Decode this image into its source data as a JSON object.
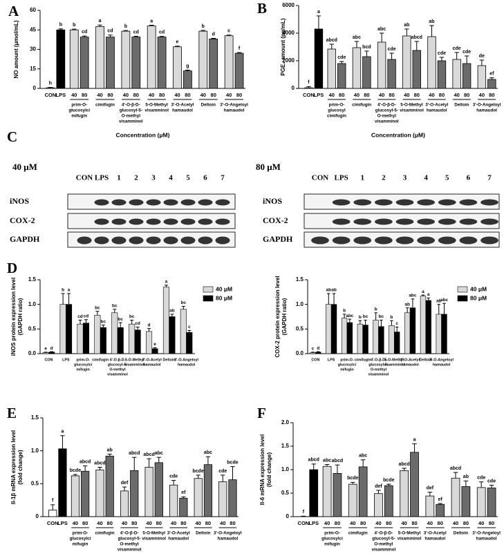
{
  "panel_labels": [
    "A",
    "B",
    "C",
    "D",
    "E",
    "F"
  ],
  "blots": [
    {
      "concentration": "40 μM",
      "lanes": [
        "CON",
        "LPS",
        "1",
        "2",
        "3",
        "4",
        "5",
        "6",
        "7"
      ],
      "rows": [
        "iNOS",
        "COX-2",
        "GAPDH"
      ]
    },
    {
      "concentration": "80 μM",
      "lanes": [
        "CON",
        "LPS",
        "1",
        "2",
        "3",
        "4",
        "5",
        "6",
        "7"
      ],
      "rows": [
        "iNOS",
        "COX-2",
        "GAPDH"
      ]
    }
  ],
  "chart_data": [
    {
      "type": "bar",
      "y_label": [
        "NO amount (μmol/mL)"
      ],
      "x_label": "Concentration (μM)",
      "categories": [
        "CON",
        "LPS",
        "40",
        "80",
        "40",
        "80",
        "40",
        "80",
        "40",
        "80",
        "40",
        "80",
        "40",
        "80",
        "40",
        "80"
      ],
      "groups": [
        [
          "prim-O-",
          "glucosylci",
          "mifugin"
        ],
        [
          "cimifugin"
        ],
        [
          "4'-O-β-D-",
          "glucosyl-5-",
          "O-methyl",
          "visamminol"
        ],
        [
          "5-O-Methyl",
          "visamminol"
        ],
        [
          "3'-O-Acetyl",
          "hamaudol"
        ],
        [
          "Deltoin"
        ],
        [
          "3'-O-Angeloyl",
          "hamaudol"
        ]
      ],
      "values": [
        0.5,
        45,
        45,
        39.5,
        47.5,
        39.5,
        44,
        39.5,
        48,
        39.5,
        32,
        13.5,
        44,
        38,
        40.5,
        27
      ],
      "errors": [
        0.3,
        0.8,
        0.6,
        0.8,
        1.2,
        1.5,
        0.5,
        0.6,
        0.6,
        0.5,
        0.5,
        0.6,
        0.6,
        0.5,
        0.5,
        0.6
      ],
      "letters": [
        "h",
        "b",
        "b",
        "cd",
        "a",
        "cd",
        "b",
        "cd",
        "a",
        "cd",
        "e",
        "g",
        "b",
        "d",
        "c",
        "f"
      ],
      "bar_colors": [
        "#ffffff",
        "#000000",
        "#d9d9d9",
        "#6b6b6b",
        "#d9d9d9",
        "#6b6b6b",
        "#d9d9d9",
        "#6b6b6b",
        "#d9d9d9",
        "#6b6b6b",
        "#d9d9d9",
        "#6b6b6b",
        "#d9d9d9",
        "#6b6b6b",
        "#d9d9d9",
        "#6b6b6b"
      ],
      "ylim": [
        0,
        60
      ],
      "yticks": [
        0,
        15,
        30,
        45,
        60
      ]
    },
    {
      "type": "bar",
      "y_label": [
        "PGE₂ amount (pg/mL)"
      ],
      "x_label": "Concentration (μM)",
      "categories": [
        "CON",
        "LPS",
        "40",
        "80",
        "40",
        "80",
        "40",
        "80",
        "40",
        "80",
        "40",
        "80",
        "40",
        "80",
        "40",
        "80"
      ],
      "groups": [
        [
          "prim-O-",
          "glucosyl",
          "cimifugin"
        ],
        [
          "cimifugin"
        ],
        [
          "4'-O-β-D-",
          "glucosyl-5-",
          "O-methyl",
          "visamminol"
        ],
        [
          "5-O-Methyl",
          "visamminol"
        ],
        [
          "3'-O-Acetyl",
          "hamaudol"
        ],
        [
          "Deltoin"
        ],
        [
          "3'-O-Angeloyl",
          "hamaudol"
        ]
      ],
      "values": [
        50,
        4300,
        2850,
        1800,
        2950,
        2300,
        3350,
        2100,
        3800,
        2750,
        3750,
        2000,
        2100,
        1800,
        1650,
        650
      ],
      "errors": [
        80,
        950,
        350,
        150,
        450,
        400,
        650,
        450,
        500,
        650,
        800,
        250,
        500,
        550,
        400,
        120
      ],
      "letters": [
        "f",
        "a",
        "abcd",
        "cde",
        "abc",
        "bcd",
        "abc",
        "cde",
        "ab",
        "abcd",
        "ab",
        "cde",
        "cde",
        "cde",
        "de",
        "ef"
      ],
      "bar_colors": [
        "#ffffff",
        "#000000",
        "#d9d9d9",
        "#6b6b6b",
        "#d9d9d9",
        "#6b6b6b",
        "#d9d9d9",
        "#6b6b6b",
        "#d9d9d9",
        "#6b6b6b",
        "#d9d9d9",
        "#6b6b6b",
        "#d9d9d9",
        "#6b6b6b",
        "#d9d9d9",
        "#6b6b6b"
      ],
      "ylim": [
        0,
        6000
      ],
      "yticks": [
        0,
        2000,
        4000,
        6000
      ]
    },
    {
      "type": "grouped_bar",
      "y_label": [
        "iNOS protein expression level",
        "(GAPDH ratio)"
      ],
      "categories": [
        [
          "CON"
        ],
        [
          "LPS"
        ],
        [
          "prim-O-",
          "glucosylci",
          "mifugin"
        ],
        [
          "cimifugin"
        ],
        [
          "4'-O-β-D-",
          "glucosyl-5-",
          "O-methyl",
          "visamminol"
        ],
        [
          "5-O-Methyl",
          "visamminol"
        ],
        [
          "3'-O-Acetyl",
          "hamaudol"
        ],
        [
          "Deltoin"
        ],
        [
          "3'-O-Angeloyl",
          "hamaudol"
        ]
      ],
      "series": [
        {
          "name": "40 μM",
          "color": "#d9d9d9",
          "values": [
            0.02,
            1.0,
            0.6,
            0.78,
            0.83,
            0.6,
            0.45,
            1.35,
            0.9
          ],
          "errors": [
            0.01,
            0.22,
            0.08,
            0.08,
            0.07,
            0.08,
            0.06,
            0.04,
            0.06
          ],
          "letters": [
            "e",
            "b",
            "cd",
            "bc",
            "bc",
            "bc",
            "d",
            "a",
            "bc"
          ]
        },
        {
          "name": "80 μM",
          "color": "#000000",
          "values": [
            0.03,
            1.0,
            0.62,
            0.53,
            0.53,
            0.48,
            0.1,
            0.75,
            0.43
          ],
          "errors": [
            0.01,
            0.22,
            0.07,
            0.05,
            0.1,
            0.06,
            0.02,
            0.05,
            0.04
          ],
          "letters": [
            "d",
            "a",
            "cd",
            "bc",
            "bc",
            "cd",
            "e",
            "ab",
            "c"
          ]
        }
      ],
      "legend": "outside-right",
      "ylim": [
        0,
        1.5
      ],
      "yticks": [
        {
          "value": 0,
          "label": "0.0"
        },
        0.5,
        {
          "value": 1,
          "label": "1.0"
        },
        1.5
      ]
    },
    {
      "type": "grouped_bar",
      "y_label": [
        "COX-2 protein expression level",
        "(GAPDH ratio)"
      ],
      "categories": [
        [
          "CON"
        ],
        [
          "LPS"
        ],
        [
          "prim-O-",
          "glucosylci",
          "mifugin"
        ],
        [
          "cimifugin"
        ],
        [
          "4'-O-β-D-",
          "glucosyl-5-",
          "O-methyl",
          "visamminol"
        ],
        [
          "5-O-Methyl",
          "visamminol"
        ],
        [
          "3'-O-Acetyl",
          "hamaudol"
        ],
        [
          "Deltoin"
        ],
        [
          "3'-O-Angeloyl",
          "hamaudol"
        ]
      ],
      "series": [
        {
          "name": "40 μM",
          "color": "#d9d9d9",
          "values": [
            0.02,
            1.0,
            0.72,
            0.6,
            0.68,
            0.57,
            0.83,
            1.17,
            0.8
          ],
          "errors": [
            0.01,
            0.22,
            0.08,
            0.07,
            0.15,
            0.1,
            0.1,
            0.02,
            0.2
          ],
          "letters": [
            "c",
            "ab",
            "b",
            "b",
            "b",
            "b",
            "ab",
            "a",
            "ab"
          ]
        },
        {
          "name": "80 μM",
          "color": "#000000",
          "values": [
            0.03,
            1.0,
            0.63,
            0.58,
            0.55,
            0.44,
            0.93,
            1.08,
            0.8
          ],
          "errors": [
            0.01,
            0.22,
            0.07,
            0.1,
            0.13,
            0.1,
            0.18,
            0.05,
            0.22
          ],
          "letters": [
            "d",
            "ab",
            "abc",
            "bc",
            "bc",
            "c",
            "abc",
            "a",
            "abc"
          ]
        }
      ],
      "legend": "outside-right",
      "ylim": [
        0,
        1.5
      ],
      "yticks": [
        {
          "value": 0,
          "label": "0.0"
        },
        0.5,
        {
          "value": 1,
          "label": "1.0"
        },
        1.5
      ]
    },
    {
      "type": "bar",
      "y_label": [
        "Il-1β mRNA expression level",
        "(fold change)"
      ],
      "categories": [
        "CON",
        "LPS",
        "40",
        "80",
        "40",
        "80",
        "40",
        "80",
        "40",
        "80",
        "40",
        "80",
        "40",
        "80",
        "40",
        "80"
      ],
      "groups": [
        [
          "prim-O-",
          "glucosylci",
          "mifugin"
        ],
        [
          "cimifugin"
        ],
        [
          "4'-O-β-D-",
          "glucosyl-5-",
          "O-methyl",
          "visamminol"
        ],
        [
          "5-O-Methyl",
          "visamminol"
        ],
        [
          "3'-O-Acetyl",
          "hamaudol"
        ],
        [
          "Deltoin"
        ],
        [
          "3'-O-Angeloyl",
          "hamaudol"
        ]
      ],
      "values": [
        0.1,
        1.03,
        0.62,
        0.69,
        0.71,
        0.92,
        0.39,
        0.7,
        0.75,
        0.82,
        0.48,
        0.28,
        0.58,
        0.79,
        0.53,
        0.56
      ],
      "errors": [
        0.08,
        0.2,
        0.02,
        0.08,
        0.04,
        0.03,
        0.06,
        0.2,
        0.13,
        0.08,
        0.07,
        0.02,
        0.05,
        0.12,
        0.1,
        0.2
      ],
      "letters": [
        "f",
        "a",
        "bcde",
        "abcd",
        "abcd",
        "ab",
        "def",
        "abcd",
        "abcd",
        "abc",
        "cde",
        "ef",
        "bcde",
        "abc",
        "cde",
        "bcde"
      ],
      "bar_colors": [
        "#ffffff",
        "#000000",
        "#d9d9d9",
        "#6b6b6b",
        "#d9d9d9",
        "#6b6b6b",
        "#d9d9d9",
        "#6b6b6b",
        "#d9d9d9",
        "#6b6b6b",
        "#d9d9d9",
        "#6b6b6b",
        "#d9d9d9",
        "#6b6b6b",
        "#d9d9d9",
        "#6b6b6b"
      ],
      "ylim": [
        0,
        1.5
      ],
      "yticks": [
        0,
        0.5,
        {
          "value": 1,
          "label": "1.0"
        },
        1.5
      ]
    },
    {
      "type": "bar",
      "y_label": [
        "Il-6 mRNA expression level",
        "(fold change)"
      ],
      "categories": [
        "CON",
        "LPS",
        "40",
        "80",
        "40",
        "80",
        "40",
        "80",
        "40",
        "80",
        "40",
        "80",
        "40",
        "80",
        "40",
        "80"
      ],
      "groups": [
        [
          "prim-O-",
          "glucosylci",
          "mifugin"
        ],
        [
          "cimifugin"
        ],
        [
          "4'-O-β-D-",
          "glucosyl-5-",
          "O-methyl",
          "visamminol"
        ],
        [
          "5-O-Methyl",
          "visamminol"
        ],
        [
          "3'-O-Acetyl",
          "hamaudol"
        ],
        [
          "Deltoin"
        ],
        [
          "3'-O-Angeloyl",
          "hamaudol"
        ]
      ],
      "values": [
        0,
        1.0,
        1.07,
        0.92,
        0.69,
        1.06,
        0.49,
        0.66,
        0.98,
        1.37,
        0.44,
        0.26,
        0.82,
        0.64,
        0.62,
        0.61
      ],
      "errors": [
        0.01,
        0.12,
        0.04,
        0.18,
        0.04,
        0.15,
        0.07,
        0.03,
        0.05,
        0.18,
        0.08,
        0.02,
        0.12,
        0.12,
        0.12,
        0.06
      ],
      "letters": [
        "f",
        "abcd",
        "abc",
        "abcd",
        "bcde",
        "abc",
        "def",
        "bcde",
        "abcd",
        "a",
        "def",
        "ef",
        "abcd",
        "ab",
        "cde",
        "cde"
      ],
      "bar_colors": [
        "#ffffff",
        "#000000",
        "#d9d9d9",
        "#6b6b6b",
        "#d9d9d9",
        "#6b6b6b",
        "#d9d9d9",
        "#6b6b6b",
        "#d9d9d9",
        "#6b6b6b",
        "#d9d9d9",
        "#6b6b6b",
        "#d9d9d9",
        "#6b6b6b",
        "#d9d9d9",
        "#6b6b6b"
      ],
      "ylim": [
        0,
        2
      ],
      "yticks": [
        0,
        0.5,
        {
          "value": 1,
          "label": "1.0"
        },
        1.5,
        {
          "value": 2,
          "label": "2.0"
        }
      ]
    }
  ]
}
